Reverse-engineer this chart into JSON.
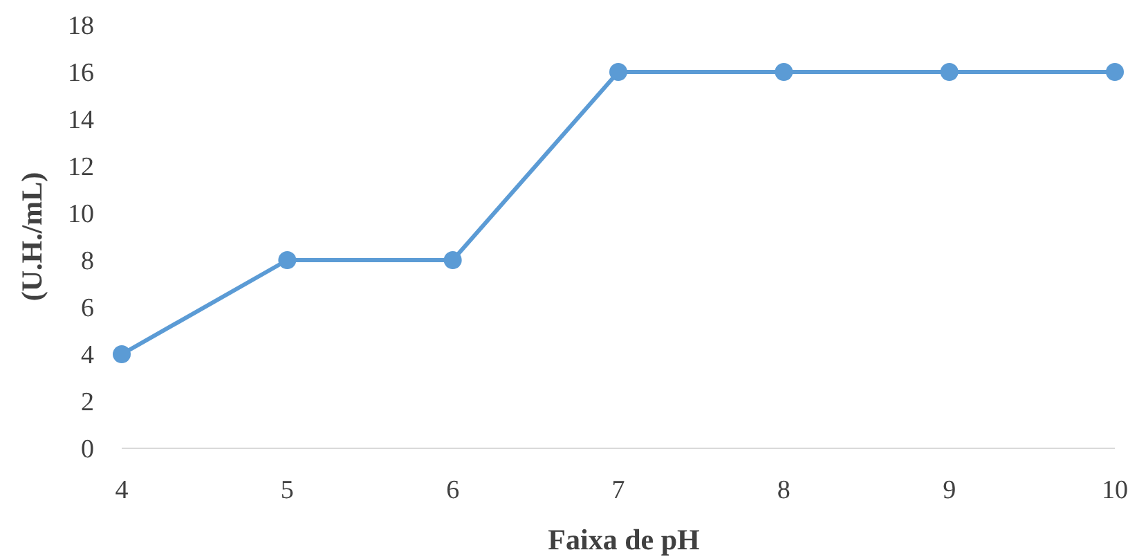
{
  "chart_data": {
    "type": "line",
    "xlabel": "Faixa de pH",
    "ylabel": "(U.H./mL)",
    "x": [
      4,
      5,
      6,
      7,
      8,
      9,
      10
    ],
    "series": [
      {
        "color": "#5b9bd5",
        "values": [
          4,
          8,
          8,
          16,
          16,
          16,
          16
        ]
      }
    ],
    "xlim": [
      4,
      10
    ],
    "xticks": [
      4,
      5,
      6,
      7,
      8,
      9,
      10
    ],
    "ylim": [
      0,
      18
    ],
    "yticks": [
      0,
      2,
      4,
      6,
      8,
      10,
      12,
      14,
      16,
      18
    ],
    "grid": false,
    "marker": "circle",
    "line_style": "solid"
  }
}
